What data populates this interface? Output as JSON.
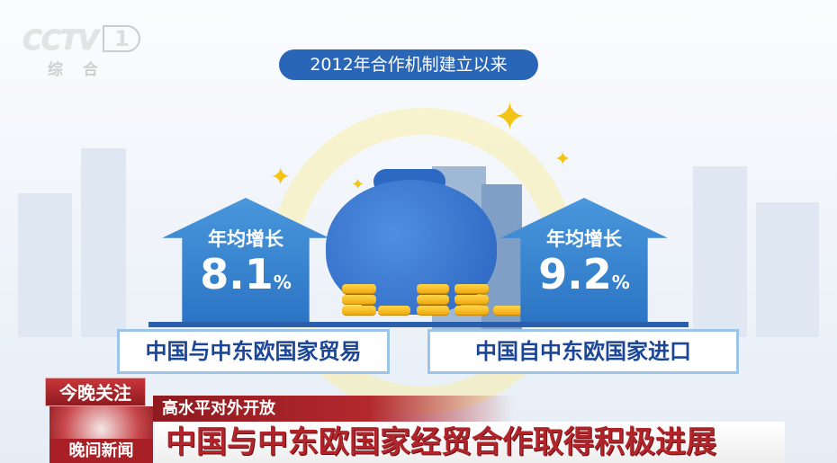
{
  "channel_logo": {
    "brand": "CCTV",
    "number": "1",
    "subtitle": "综合"
  },
  "infographic": {
    "title": "2012年合作机制建立以来",
    "left": {
      "heading": "年均增长",
      "value": "8.1",
      "unit": "%",
      "label": "中国与中东欧国家贸易"
    },
    "right": {
      "heading": "年均增长",
      "value": "9.2",
      "unit": "%",
      "label": "中国自中东欧国家进口"
    },
    "accent_color": "#2a66b8"
  },
  "news_banner": {
    "tag": "今晚关注",
    "program": "晚间新闻",
    "subtitle": "高水平对外开放",
    "headline": "中国与中东欧国家经贸合作取得积极进展"
  }
}
